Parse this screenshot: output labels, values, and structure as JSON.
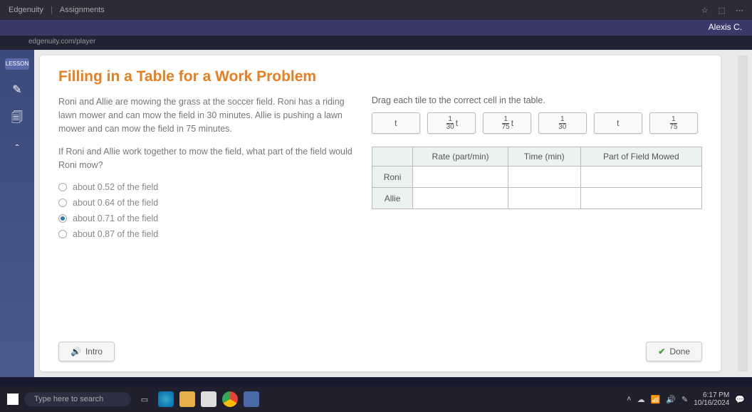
{
  "browser": {
    "tab1": "Edgenuity",
    "tab2": "Assignments",
    "nav_icons": [
      "☆",
      "⬚",
      "⋯"
    ],
    "user_label": "Alexis C.",
    "url_hint": "edgenuity.com/player"
  },
  "rail": {
    "badge": "LESSON",
    "icons": [
      "✎",
      "🗐",
      "＾"
    ]
  },
  "lesson": {
    "title": "Filling in a Table for a Work Problem",
    "paragraph1": "Roni and Allie are mowing the grass at the soccer field. Roni has a riding lawn mower and can mow the field in 30 minutes. Allie is pushing a lawn mower and can mow the field in 75 minutes.",
    "paragraph2": "If Roni and Allie work together to mow the field, what part of the field would Roni mow?",
    "options": [
      {
        "label": "about 0.52 of the field",
        "selected": false
      },
      {
        "label": "about 0.64 of the field",
        "selected": false
      },
      {
        "label": "about 0.71 of the field",
        "selected": true
      },
      {
        "label": "about 0.87 of the field",
        "selected": false
      }
    ],
    "instruction": "Drag each tile to the correct cell in the table.",
    "tiles": [
      {
        "type": "var",
        "text": "t"
      },
      {
        "type": "fracvar",
        "num": "1",
        "den": "30",
        "suffix": " t"
      },
      {
        "type": "fracvar",
        "num": "1",
        "den": "75",
        "suffix": " t"
      },
      {
        "type": "frac",
        "num": "1",
        "den": "30"
      },
      {
        "type": "var",
        "text": "t"
      },
      {
        "type": "frac",
        "num": "1",
        "den": "75"
      }
    ],
    "table": {
      "headers": [
        "",
        "Rate (part/min)",
        "Time (min)",
        "Part of Field Mowed"
      ],
      "rows": [
        "Roni",
        "Allie"
      ]
    },
    "intro_label": "Intro",
    "done_label": "Done"
  },
  "taskbar": {
    "search_placeholder": "Type here to search",
    "time": "6:17 PM",
    "date": "10/16/2024"
  },
  "colors": {
    "title": "#e67e22",
    "header_bg": "#3a3a6a",
    "card_bg": "#ffffff"
  }
}
